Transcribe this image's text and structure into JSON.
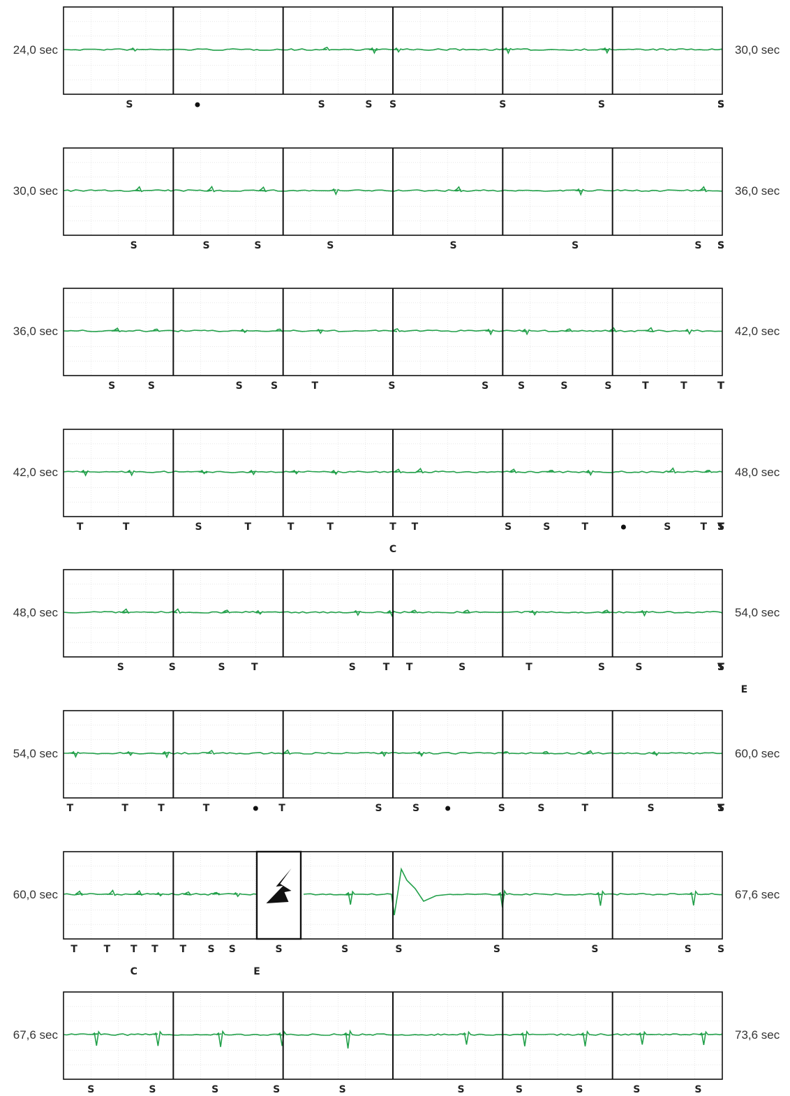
{
  "chart_data": {
    "type": "line",
    "title": "",
    "unit": "sec",
    "colors": {
      "trace": "#22a04a",
      "grid": "#d9d9d9",
      "border": "#111111",
      "text": "#333333"
    },
    "strips": [
      {
        "start_label": "24,0 sec",
        "end_label": "30,0 sec",
        "t0": 24.0,
        "t1": 30.0,
        "marks": [
          {
            "t": 24.6,
            "l": "S"
          },
          {
            "t": 25.22,
            "l": "•"
          },
          {
            "t": 26.35,
            "l": "S"
          },
          {
            "t": 26.78,
            "l": "S"
          },
          {
            "t": 27.0,
            "l": "S"
          },
          {
            "t": 28.0,
            "l": "S"
          },
          {
            "t": 28.9,
            "l": "S"
          },
          {
            "t": 30.0,
            "l": "S"
          },
          {
            "t": 30.7,
            "l": "S"
          },
          {
            "t": 31.35,
            "l": "S"
          },
          {
            "t": 32.2,
            "l": "S"
          },
          {
            "t": 33.3,
            "l": "S"
          }
        ],
        "secondary": [],
        "pause": null
      },
      {
        "start_label": "30,0 sec",
        "end_label": "36,0 sec",
        "t0": 30.0,
        "t1": 36.0,
        "marks": [
          {
            "t": 30.64,
            "l": "S"
          },
          {
            "t": 31.3,
            "l": "S"
          },
          {
            "t": 31.77,
            "l": "S"
          },
          {
            "t": 32.43,
            "l": "S"
          },
          {
            "t": 33.55,
            "l": "S"
          },
          {
            "t": 34.66,
            "l": "S"
          },
          {
            "t": 35.78,
            "l": "S"
          },
          {
            "t": 37.26,
            "l": "S"
          },
          {
            "t": 38.05,
            "l": "S"
          },
          {
            "t": 39.13,
            "l": "S"
          }
        ],
        "secondary": [],
        "pause": null
      },
      {
        "start_label": "36,0 sec",
        "end_label": "42,0 sec",
        "t0": 36.0,
        "t1": 42.0,
        "marks": [
          {
            "t": 36.44,
            "l": "S"
          },
          {
            "t": 36.8,
            "l": "S"
          },
          {
            "t": 37.6,
            "l": "S"
          },
          {
            "t": 37.92,
            "l": "S"
          },
          {
            "t": 38.29,
            "l": "T"
          },
          {
            "t": 38.99,
            "l": "S"
          },
          {
            "t": 39.84,
            "l": "S"
          },
          {
            "t": 40.17,
            "l": "S"
          },
          {
            "t": 40.56,
            "l": "S"
          },
          {
            "t": 40.96,
            "l": "S"
          },
          {
            "t": 41.3,
            "l": "T"
          },
          {
            "t": 41.65,
            "l": "T"
          },
          {
            "t": 42.1,
            "l": "T"
          },
          {
            "t": 42.3,
            "l": "T"
          },
          {
            "t": 42.75,
            "l": "T"
          },
          {
            "t": 43.15,
            "l": "T"
          },
          {
            "t": 43.42,
            "l": "T"
          },
          {
            "t": 43.86,
            "l": "T"
          },
          {
            "t": 44.24,
            "l": "T"
          },
          {
            "t": 44.52,
            "l": "T"
          },
          {
            "t": 45.36,
            "l": "T"
          }
        ],
        "secondary": [],
        "pause": null
      },
      {
        "start_label": "42,0 sec",
        "end_label": "48,0 sec",
        "t0": 42.0,
        "t1": 48.0,
        "marks": [
          {
            "t": 42.15,
            "l": "T"
          },
          {
            "t": 42.57,
            "l": "T"
          },
          {
            "t": 43.23,
            "l": "S"
          },
          {
            "t": 43.68,
            "l": "T"
          },
          {
            "t": 44.07,
            "l": "T"
          },
          {
            "t": 44.43,
            "l": "T"
          },
          {
            "t": 45.0,
            "l": "T"
          },
          {
            "t": 45.2,
            "l": "T"
          },
          {
            "t": 46.05,
            "l": "S"
          },
          {
            "t": 46.4,
            "l": "S"
          },
          {
            "t": 46.75,
            "l": "T"
          },
          {
            "t": 47.1,
            "l": "•"
          },
          {
            "t": 47.5,
            "l": "S"
          },
          {
            "t": 47.83,
            "l": "T"
          },
          {
            "t": 48.3,
            "l": "T"
          },
          {
            "t": 48.63,
            "l": "S"
          },
          {
            "t": 49.37,
            "l": "T"
          },
          {
            "t": 50.03,
            "l": "S"
          },
          {
            "t": 50.72,
            "l": "S"
          },
          {
            "t": 51.15,
            "l": "S"
          }
        ],
        "secondary": [
          {
            "t": 45.0,
            "l": "C"
          }
        ],
        "pause": null
      },
      {
        "start_label": "48,0 sec",
        "end_label": "54,0 sec",
        "t0": 48.0,
        "t1": 54.0,
        "marks": [
          {
            "t": 48.52,
            "l": "S"
          },
          {
            "t": 48.99,
            "l": "S"
          },
          {
            "t": 49.44,
            "l": "S"
          },
          {
            "t": 49.74,
            "l": "T"
          },
          {
            "t": 50.63,
            "l": "S"
          },
          {
            "t": 50.94,
            "l": "T"
          },
          {
            "t": 51.15,
            "l": "T"
          },
          {
            "t": 51.63,
            "l": "S"
          },
          {
            "t": 52.24,
            "l": "T"
          },
          {
            "t": 52.9,
            "l": "S"
          },
          {
            "t": 53.24,
            "l": "S"
          },
          {
            "t": 54.2,
            "l": "S"
          },
          {
            "t": 54.55,
            "l": "S"
          },
          {
            "t": 55.5,
            "l": "S"
          },
          {
            "t": 55.8,
            "l": "S"
          },
          {
            "t": 56.2,
            "l": "T"
          },
          {
            "t": 56.8,
            "l": "S"
          },
          {
            "t": 57.15,
            "l": "T"
          }
        ],
        "secondary": [
          {
            "t": 54.2,
            "l": "E"
          }
        ],
        "pause": null
      },
      {
        "start_label": "54,0 sec",
        "end_label": "60,0 sec",
        "t0": 54.0,
        "t1": 60.0,
        "marks": [
          {
            "t": 54.06,
            "l": "T"
          },
          {
            "t": 54.56,
            "l": "T"
          },
          {
            "t": 54.89,
            "l": "T"
          },
          {
            "t": 55.3,
            "l": "T"
          },
          {
            "t": 55.75,
            "l": "•"
          },
          {
            "t": 55.99,
            "l": "T"
          },
          {
            "t": 56.87,
            "l": "S"
          },
          {
            "t": 57.21,
            "l": "S"
          },
          {
            "t": 57.5,
            "l": "•"
          },
          {
            "t": 57.99,
            "l": "S"
          },
          {
            "t": 58.35,
            "l": "S"
          },
          {
            "t": 58.75,
            "l": "T"
          },
          {
            "t": 59.35,
            "l": "S"
          },
          {
            "t": 60.45,
            "l": "S"
          },
          {
            "t": 60.9,
            "l": "S"
          },
          {
            "t": 61.3,
            "l": "S"
          },
          {
            "t": 61.65,
            "l": "S"
          },
          {
            "t": 62.0,
            "l": "T"
          },
          {
            "t": 62.4,
            "l": "T"
          },
          {
            "t": 62.75,
            "l": "T"
          },
          {
            "t": 63.15,
            "l": "T"
          },
          {
            "t": 63.55,
            "l": "T"
          }
        ],
        "secondary": [],
        "pause": null
      },
      {
        "start_label": "60,0 sec",
        "end_label": "67,6 sec",
        "t0": 60.0,
        "t1": 67.6,
        "marks": [
          {
            "t": 60.15,
            "l": "T"
          },
          {
            "t": 60.62,
            "l": "T"
          },
          {
            "t": 61.0,
            "l": "T"
          },
          {
            "t": 61.3,
            "l": "T"
          },
          {
            "t": 61.7,
            "l": "T"
          },
          {
            "t": 62.1,
            "l": "S"
          },
          {
            "t": 62.4,
            "l": "S"
          },
          {
            "t": 63.2,
            "l": "S"
          },
          {
            "t": 63.75,
            "l": "S"
          },
          {
            "t": 64.3,
            "l": "S"
          },
          {
            "t": 65.3,
            "l": "S"
          },
          {
            "t": 66.3,
            "l": "S"
          },
          {
            "t": 67.25,
            "l": "S"
          },
          {
            "t": 68.2,
            "l": "S"
          }
        ],
        "secondary": [
          {
            "t": 61.0,
            "l": "C"
          },
          {
            "t": 62.75,
            "l": "E"
          }
        ],
        "pause": {
          "icon": "lightning-bolt-icon"
        }
      },
      {
        "start_label": "67,6 sec",
        "end_label": "73,6 sec",
        "t0": 67.6,
        "t1": 73.6,
        "marks": [
          {
            "t": 67.85,
            "l": "S"
          },
          {
            "t": 68.41,
            "l": "S"
          },
          {
            "t": 68.98,
            "l": "S"
          },
          {
            "t": 69.54,
            "l": "S"
          },
          {
            "t": 70.14,
            "l": "S"
          },
          {
            "t": 71.22,
            "l": "S"
          },
          {
            "t": 71.75,
            "l": "S"
          },
          {
            "t": 72.3,
            "l": "S"
          },
          {
            "t": 72.82,
            "l": "S"
          },
          {
            "t": 73.38,
            "l": "S"
          }
        ],
        "secondary": [],
        "pause": null
      }
    ]
  }
}
